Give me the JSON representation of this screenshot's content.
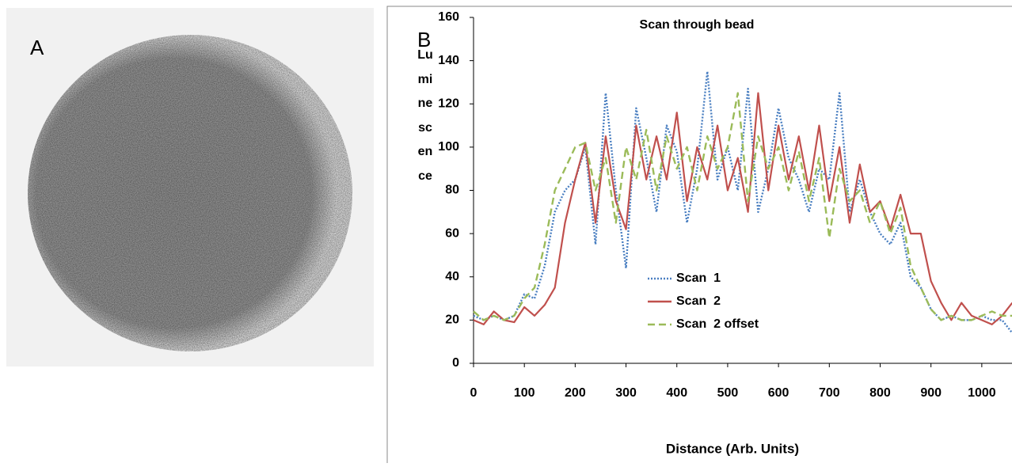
{
  "image_panel": {
    "label": "A"
  },
  "chart_data": {
    "type": "line",
    "panel_label": "B",
    "title": "Scan  through bead",
    "x_label": "Distance (Arb. Units)",
    "y_label": "Luminescence",
    "x": [
      0,
      20,
      40,
      60,
      80,
      100,
      120,
      140,
      160,
      180,
      200,
      220,
      240,
      260,
      280,
      300,
      320,
      340,
      360,
      380,
      400,
      420,
      440,
      460,
      480,
      500,
      520,
      540,
      560,
      580,
      600,
      620,
      640,
      660,
      680,
      700,
      720,
      740,
      760,
      780,
      800,
      820,
      840,
      860,
      880,
      900,
      920,
      940,
      960,
      980,
      1000,
      1020,
      1040,
      1060
    ],
    "series": [
      {
        "name": "Scan  1",
        "color": "#4a7fc1",
        "dash": "dotted",
        "values": [
          22,
          20,
          22,
          20,
          22,
          32,
          30,
          45,
          70,
          80,
          85,
          100,
          55,
          125,
          80,
          44,
          118,
          95,
          70,
          110,
          98,
          65,
          90,
          135,
          85,
          100,
          80,
          127,
          70,
          90,
          118,
          95,
          85,
          70,
          90,
          85,
          125,
          70,
          85,
          70,
          60,
          55,
          65,
          40,
          35,
          25,
          20,
          22,
          20,
          20,
          22,
          20,
          20,
          14
        ]
      },
      {
        "name": "Scan  2",
        "color": "#c0504d",
        "dash": "solid",
        "values": [
          20,
          18,
          24,
          20,
          19,
          26,
          22,
          27,
          35,
          65,
          85,
          102,
          65,
          105,
          75,
          62,
          110,
          85,
          105,
          85,
          116,
          75,
          100,
          85,
          110,
          80,
          95,
          70,
          125,
          80,
          110,
          85,
          105,
          80,
          110,
          75,
          100,
          65,
          92,
          70,
          75,
          62,
          78,
          60,
          60,
          38,
          28,
          20,
          28,
          22,
          20,
          18,
          22,
          28
        ]
      },
      {
        "name": "Scan  2 offset",
        "color": "#9bbb59",
        "dash": "dashed",
        "values": [
          24,
          20,
          22,
          20,
          22,
          30,
          35,
          55,
          80,
          90,
          100,
          102,
          80,
          95,
          65,
          100,
          85,
          108,
          80,
          105,
          90,
          100,
          80,
          105,
          90,
          100,
          125,
          75,
          105,
          90,
          100,
          80,
          98,
          75,
          95,
          58,
          90,
          75,
          80,
          65,
          75,
          60,
          72,
          45,
          35,
          25,
          20,
          22,
          20,
          20,
          22,
          24,
          22,
          22
        ]
      }
    ],
    "xlim": [
      0,
      1075
    ],
    "ylim": [
      0,
      160
    ],
    "xticks": [
      0,
      100,
      200,
      300,
      400,
      500,
      600,
      700,
      800,
      900,
      1000
    ],
    "yticks": [
      0,
      20,
      40,
      60,
      80,
      100,
      120,
      140,
      160
    ],
    "legend_loc": "center"
  }
}
